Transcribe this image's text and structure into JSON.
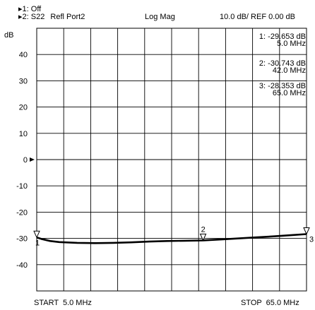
{
  "header": {
    "trace1": "1: Off",
    "trace2": "2: S22",
    "trace2_desc": "Refl Port2",
    "format": "Log Mag",
    "scale": "10.0 dB/ REF 0.00 dB"
  },
  "markers": [
    {
      "num": "1:",
      "value": "-29.653 dB",
      "freq": "5.0 MHz"
    },
    {
      "num": "2:",
      "value": "-30.743 dB",
      "freq": "42.0 MHz"
    },
    {
      "num": "3:",
      "value": "-28.353 dB",
      "freq": "65.0 MHz"
    }
  ],
  "footer": {
    "start": "START  5.0 MHz",
    "stop": "STOP  65.0 MHz"
  },
  "chart_data": {
    "type": "line",
    "ylabel": "dB",
    "xlim": [
      5.0,
      65.0
    ],
    "ylim": [
      -50,
      50
    ],
    "yticks": [
      "40",
      "30",
      "20",
      "10",
      "0",
      "-10",
      "-20",
      "-30",
      "-40"
    ],
    "ytick_values": [
      40,
      30,
      20,
      10,
      0,
      -10,
      -20,
      -30,
      -40
    ],
    "grid": true,
    "series": [
      {
        "name": "S22",
        "x": [
          5.0,
          6.0,
          8.0,
          10.0,
          14.0,
          18.0,
          22.0,
          26.0,
          30.0,
          34.0,
          38.0,
          42.0,
          46.0,
          50.0,
          54.0,
          58.0,
          62.0,
          65.0
        ],
        "y": [
          -29.65,
          -30.2,
          -31.0,
          -31.4,
          -31.7,
          -31.8,
          -31.7,
          -31.5,
          -31.2,
          -31.0,
          -30.9,
          -30.74,
          -30.4,
          -30.0,
          -29.6,
          -29.2,
          -28.7,
          -28.35
        ]
      }
    ],
    "marker_points": [
      {
        "label": "1",
        "x": 5.0,
        "y": -29.653
      },
      {
        "label": "2",
        "x": 42.0,
        "y": -30.743
      },
      {
        "label": "3",
        "x": 65.0,
        "y": -28.353
      }
    ],
    "ref_level": 0.0,
    "colors": {
      "grid": "#000000",
      "trace": "#000000"
    }
  }
}
